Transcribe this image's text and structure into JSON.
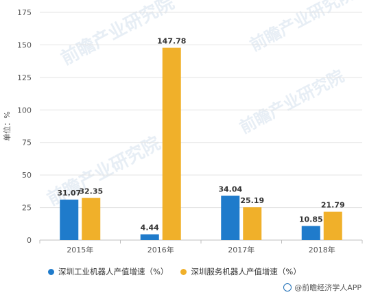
{
  "colors": {
    "series1": "#1f7bcb",
    "series2": "#f0b02a"
  },
  "watermark": {
    "text": "前瞻产业研究院"
  },
  "brand": {
    "text": "@前瞻经济学人APP"
  },
  "chart_data": {
    "type": "bar",
    "categories": [
      "2015年",
      "2016年",
      "2017年",
      "2018年"
    ],
    "series": [
      {
        "name": "深圳工业机器人产值增速（%）",
        "values": [
          31.07,
          4.44,
          34.04,
          10.85
        ],
        "labels": [
          "31.07",
          "4.44",
          "34.04",
          "10.85"
        ]
      },
      {
        "name": "深圳服务机器人产值增速（%）",
        "values": [
          32.35,
          147.78,
          25.19,
          21.79
        ],
        "labels": [
          "32.35",
          "147.78",
          "25.19",
          "21.79"
        ]
      }
    ],
    "ylabel": "单位：%",
    "ylim": [
      0,
      175
    ],
    "yticks": [
      0,
      25,
      50,
      75,
      100,
      125,
      150,
      175
    ],
    "grid": true,
    "legend": "bottom"
  }
}
